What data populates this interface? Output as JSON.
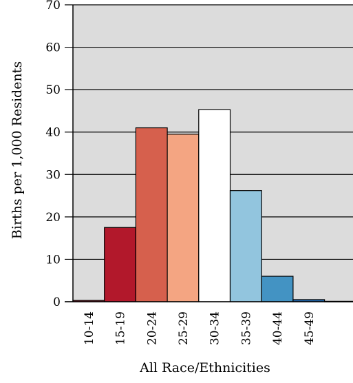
{
  "chart_data": {
    "type": "bar",
    "categories": [
      "10-14",
      "15-19",
      "20-24",
      "25-29",
      "30-34",
      "35-39",
      "40-44",
      "45-49",
      ""
    ],
    "values": [
      0.3,
      17.5,
      41.0,
      39.5,
      45.3,
      26.2,
      6.0,
      0.5,
      0.1
    ],
    "colors": [
      "#b2182b",
      "#b2182b",
      "#d6604d",
      "#f4a582",
      "#ffffff",
      "#92c5de",
      "#4393c3",
      "#2166ac",
      "#2166ac"
    ],
    "xlabel": "All Race/Ethnicities",
    "ylabel": "Births per 1,000 Residents",
    "ylim": [
      0,
      70
    ],
    "yticks": [
      0,
      10,
      20,
      30,
      40,
      50,
      60,
      70
    ],
    "grid": true,
    "plot_background": "#dcdcdc",
    "bar_edge_color": "#000000"
  }
}
